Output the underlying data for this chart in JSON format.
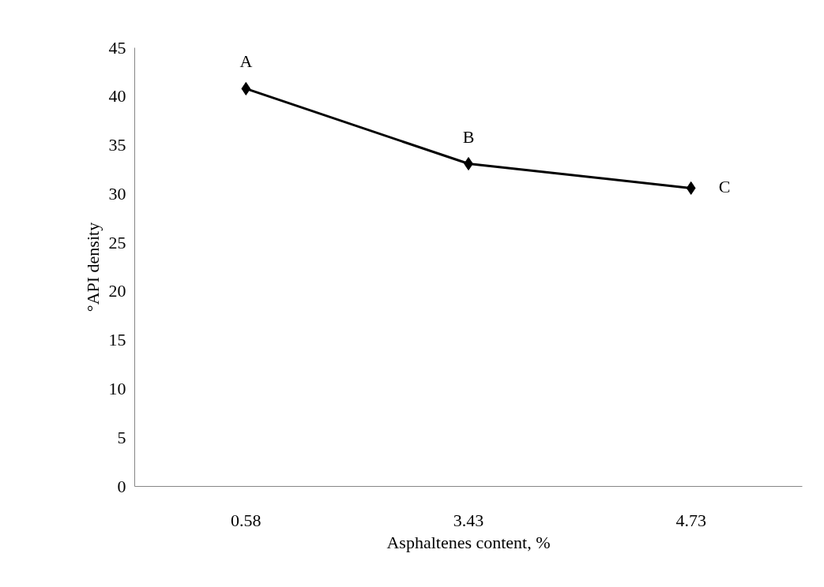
{
  "chart_data": {
    "type": "line",
    "xlabel": "Asphaltenes content, %",
    "ylabel": "°API density",
    "categories": [
      "0.58",
      "3.43",
      "4.73"
    ],
    "series": [
      {
        "color": "#000000",
        "values": [
          40.8,
          33.1,
          30.6
        ]
      }
    ],
    "marker": "diamond",
    "line_style": "solid",
    "grid": false,
    "ylim": [
      0,
      45
    ],
    "yticks": [
      0,
      5,
      10,
      15,
      20,
      25,
      30,
      35,
      40,
      45
    ],
    "annotations": [
      {
        "text": "A",
        "x": "0.58",
        "y": 40.8
      },
      {
        "text": "B",
        "x": "3.43",
        "y": 33.1
      },
      {
        "text": "C",
        "x": "4.73",
        "y": 30.6
      }
    ]
  }
}
